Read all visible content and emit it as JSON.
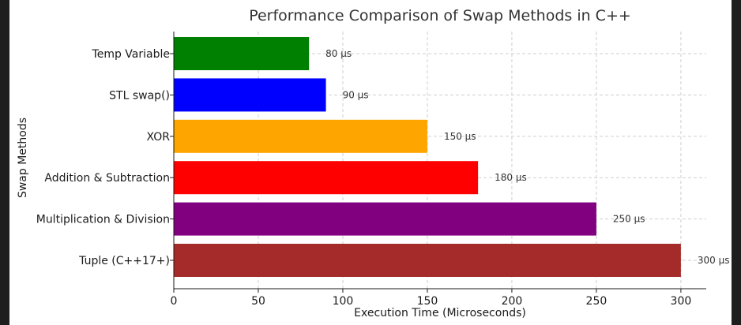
{
  "chart_data": {
    "type": "bar",
    "orientation": "horizontal",
    "title": "Performance Comparison of Swap Methods in C++",
    "xlabel": "Execution Time (Microseconds)",
    "ylabel": "Swap Methods",
    "categories": [
      "Temp Variable",
      "STL swap()",
      "XOR",
      "Addition & Subtraction",
      "Multiplication & Division",
      "Tuple (C++17+)"
    ],
    "values": [
      80,
      90,
      150,
      180,
      250,
      300
    ],
    "value_labels": [
      "80 µs",
      "90 µs",
      "150 µs",
      "180 µs",
      "250 µs",
      "300 µs"
    ],
    "colors": [
      "#008000",
      "#0000ff",
      "#ffa500",
      "#ff0000",
      "#800080",
      "#a52a2a"
    ],
    "xticks": [
      0,
      50,
      100,
      150,
      200,
      250,
      300
    ],
    "xtick_labels": [
      "0",
      "50",
      "100",
      "150",
      "200",
      "250",
      "300"
    ],
    "xlim": [
      0,
      315
    ],
    "grid": true
  }
}
